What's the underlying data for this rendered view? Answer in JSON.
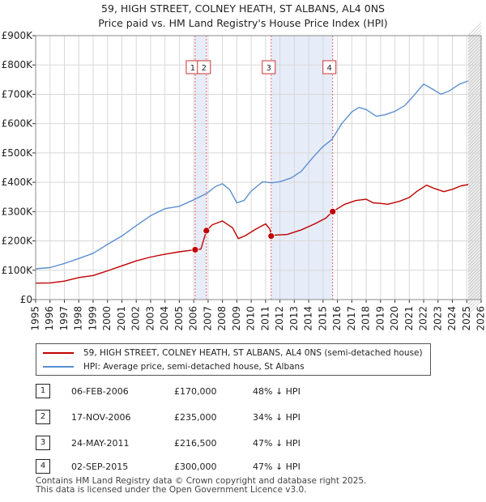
{
  "title_line1": "59, HIGH STREET, COLNEY HEATH, ST ALBANS, AL4 0NS",
  "title_line2": "Price paid vs. HM Land Registry's House Price Index (HPI)",
  "colors": {
    "red": "#c00000",
    "blue": "#5b8fd0",
    "shade": "#e6ecf8",
    "grid": "#d8d8d8"
  },
  "chart_data": {
    "type": "line",
    "title": "59, HIGH STREET, COLNEY HEATH, ST ALBANS, AL4 0NS",
    "subtitle": "Price paid vs. HM Land Registry's House Price Index (HPI)",
    "xlim": [
      1995,
      2026
    ],
    "ylim": [
      0,
      900000
    ],
    "x_ticks": [
      "1995",
      "1996",
      "1997",
      "1998",
      "1999",
      "2000",
      "2001",
      "2002",
      "2003",
      "2004",
      "2005",
      "2006",
      "2007",
      "2008",
      "2009",
      "2010",
      "2011",
      "2012",
      "2013",
      "2014",
      "2015",
      "2016",
      "2017",
      "2018",
      "2019",
      "2020",
      "2021",
      "2022",
      "2023",
      "2024",
      "2025",
      "2026"
    ],
    "y_ticks": [
      {
        "value": 0,
        "label": "£0"
      },
      {
        "value": 100000,
        "label": "£100K"
      },
      {
        "value": 200000,
        "label": "£200K"
      },
      {
        "value": 300000,
        "label": "£300K"
      },
      {
        "value": 400000,
        "label": "£400K"
      },
      {
        "value": 500000,
        "label": "£500K"
      },
      {
        "value": 600000,
        "label": "£600K"
      },
      {
        "value": 700000,
        "label": "£700K"
      },
      {
        "value": 800000,
        "label": "£800K"
      },
      {
        "value": 900000,
        "label": "£900K"
      }
    ],
    "shaded_regions": [
      [
        2006.1,
        2006.88
      ],
      [
        2011.39,
        2015.67
      ]
    ],
    "forecast_from": 2025.1,
    "series": [
      {
        "name": "59, HIGH STREET, COLNEY HEATH, ST ALBANS, AL4 0NS (semi-detached house)",
        "color": "#c00000",
        "points": [
          [
            1995,
            56000
          ],
          [
            1996,
            57000
          ],
          [
            1997,
            63000
          ],
          [
            1998,
            75000
          ],
          [
            1999,
            82000
          ],
          [
            2000,
            98000
          ],
          [
            2001,
            115000
          ],
          [
            2002,
            132000
          ],
          [
            2003,
            145000
          ],
          [
            2004,
            155000
          ],
          [
            2005,
            163000
          ],
          [
            2006.1,
            170000
          ],
          [
            2006.5,
            172000
          ],
          [
            2006.88,
            235000
          ],
          [
            2007.3,
            255000
          ],
          [
            2008,
            268000
          ],
          [
            2008.7,
            245000
          ],
          [
            2009.1,
            208000
          ],
          [
            2009.6,
            218000
          ],
          [
            2010.3,
            240000
          ],
          [
            2011.0,
            258000
          ],
          [
            2011.3,
            240000
          ],
          [
            2011.39,
            216500
          ],
          [
            2011.7,
            220000
          ],
          [
            2012.5,
            222000
          ],
          [
            2013.5,
            238000
          ],
          [
            2014.5,
            260000
          ],
          [
            2015.2,
            278000
          ],
          [
            2015.67,
            300000
          ],
          [
            2016.5,
            325000
          ],
          [
            2017.3,
            338000
          ],
          [
            2018,
            342000
          ],
          [
            2018.5,
            330000
          ],
          [
            2019,
            328000
          ],
          [
            2019.5,
            325000
          ],
          [
            2020.3,
            335000
          ],
          [
            2021,
            348000
          ],
          [
            2021.5,
            368000
          ],
          [
            2022.2,
            390000
          ],
          [
            2022.8,
            378000
          ],
          [
            2023.4,
            368000
          ],
          [
            2024,
            376000
          ],
          [
            2024.6,
            388000
          ],
          [
            2025.1,
            392000
          ]
        ]
      },
      {
        "name": "HPI: Average price, semi-detached house, St Albans",
        "color": "#5b8fd0",
        "points": [
          [
            1995,
            105000
          ],
          [
            1996,
            109000
          ],
          [
            1997,
            123000
          ],
          [
            1998,
            140000
          ],
          [
            1999,
            158000
          ],
          [
            2000,
            188000
          ],
          [
            2001,
            217000
          ],
          [
            2002,
            252000
          ],
          [
            2003,
            286000
          ],
          [
            2004,
            310000
          ],
          [
            2005,
            318000
          ],
          [
            2006,
            340000
          ],
          [
            2006.9,
            362000
          ],
          [
            2007.5,
            385000
          ],
          [
            2008,
            395000
          ],
          [
            2008.5,
            375000
          ],
          [
            2009.0,
            330000
          ],
          [
            2009.5,
            338000
          ],
          [
            2010,
            370000
          ],
          [
            2010.8,
            402000
          ],
          [
            2011.4,
            398000
          ],
          [
            2012,
            402000
          ],
          [
            2012.8,
            415000
          ],
          [
            2013.5,
            438000
          ],
          [
            2014.3,
            485000
          ],
          [
            2015,
            522000
          ],
          [
            2015.6,
            545000
          ],
          [
            2016.3,
            600000
          ],
          [
            2017,
            640000
          ],
          [
            2017.5,
            655000
          ],
          [
            2018,
            648000
          ],
          [
            2018.7,
            625000
          ],
          [
            2019.3,
            630000
          ],
          [
            2020,
            642000
          ],
          [
            2020.7,
            662000
          ],
          [
            2021.3,
            695000
          ],
          [
            2022,
            735000
          ],
          [
            2022.6,
            718000
          ],
          [
            2023.2,
            700000
          ],
          [
            2023.8,
            712000
          ],
          [
            2024.5,
            735000
          ],
          [
            2025.1,
            745000
          ]
        ]
      }
    ],
    "transactions": [
      {
        "num": "1",
        "x": 2006.1,
        "y": 170000,
        "date": "06-FEB-2006",
        "price": "£170,000",
        "hpi": "48% ↓ HPI"
      },
      {
        "num": "2",
        "x": 2006.88,
        "y": 235000,
        "date": "17-NOV-2006",
        "price": "£235,000",
        "hpi": "34% ↓ HPI"
      },
      {
        "num": "3",
        "x": 2011.39,
        "y": 216500,
        "date": "24-MAY-2011",
        "price": "£216,500",
        "hpi": "47% ↓ HPI"
      },
      {
        "num": "4",
        "x": 2015.67,
        "y": 300000,
        "date": "02-SEP-2015",
        "price": "£300,000",
        "hpi": "47% ↓ HPI"
      }
    ]
  },
  "legend": [
    {
      "label": "59, HIGH STREET, COLNEY HEATH, ST ALBANS, AL4 0NS (semi-detached house)",
      "color": "#c00000"
    },
    {
      "label": "HPI: Average price, semi-detached house, St Albans",
      "color": "#5b8fd0"
    }
  ],
  "footer": {
    "line1": "Contains HM Land Registry data © Crown copyright and database right 2025.",
    "line2": "This data is licensed under the Open Government Licence v3.0."
  }
}
